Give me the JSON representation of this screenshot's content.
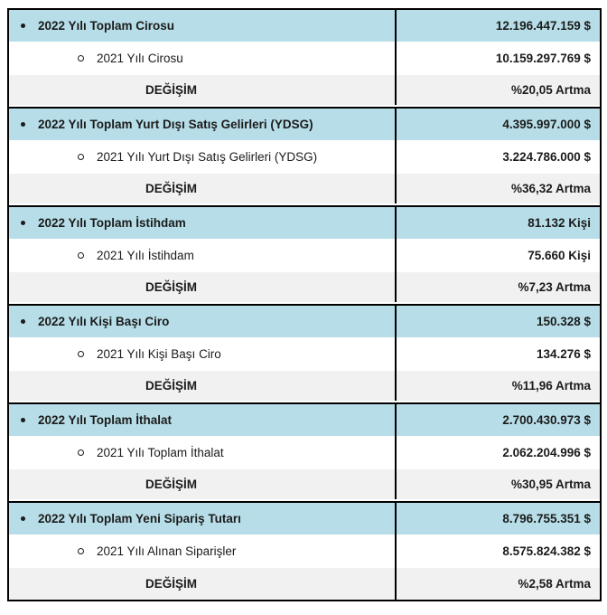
{
  "page": {
    "background": "#FFFFFF"
  },
  "table": {
    "colors": {
      "header_row_bg": "#B7DEE8",
      "sub_row_bg": "#FFFFFF",
      "change_row_bg": "#F1F1F1",
      "border": "#000000",
      "text": "#1B1B1B"
    },
    "icons": {
      "level1_bullet": "filled-dot",
      "level2_bullet": "hollow-circle"
    },
    "change_label": "DEĞİŞİM",
    "groups": [
      {
        "metric_2022": "2022 Yılı Toplam Cirosu",
        "value_2022": "12.196.447.159 $",
        "metric_2021": "2021 Yılı Cirosu",
        "value_2021": "10.159.297.769 $",
        "change_value": "%20,05 Artma"
      },
      {
        "metric_2022": "2022 Yılı Toplam Yurt Dışı Satış Gelirleri (YDSG)",
        "value_2022": "4.395.997.000 $",
        "metric_2021": "2021 Yılı Yurt Dışı Satış Gelirleri (YDSG)",
        "value_2021": "3.224.786.000 $",
        "change_value": "%36,32 Artma"
      },
      {
        "metric_2022": "2022 Yılı Toplam İstihdam",
        "value_2022": "81.132 Kişi",
        "metric_2021": "2021 Yılı İstihdam",
        "value_2021": "75.660 Kişi",
        "change_value": "%7,23 Artma"
      },
      {
        "metric_2022": "2022 Yılı Kişi Başı Ciro",
        "value_2022": "150.328 $",
        "metric_2021": "2021 Yılı Kişi Başı Ciro",
        "value_2021": "134.276 $",
        "change_value": "%11,96 Artma"
      },
      {
        "metric_2022": "2022 Yılı Toplam İthalat",
        "value_2022": "2.700.430.973 $",
        "metric_2021": "2021 Yılı Toplam İthalat",
        "value_2021": "2.062.204.996 $",
        "change_value": "%30,95 Artma"
      },
      {
        "metric_2022": "2022 Yılı Toplam Yeni Sipariş Tutarı",
        "value_2022": "8.796.755.351 $",
        "metric_2021": "2021 Yılı Alınan Siparişler",
        "value_2021": "8.575.824.382 $",
        "change_value": "%2,58 Artma"
      }
    ]
  }
}
